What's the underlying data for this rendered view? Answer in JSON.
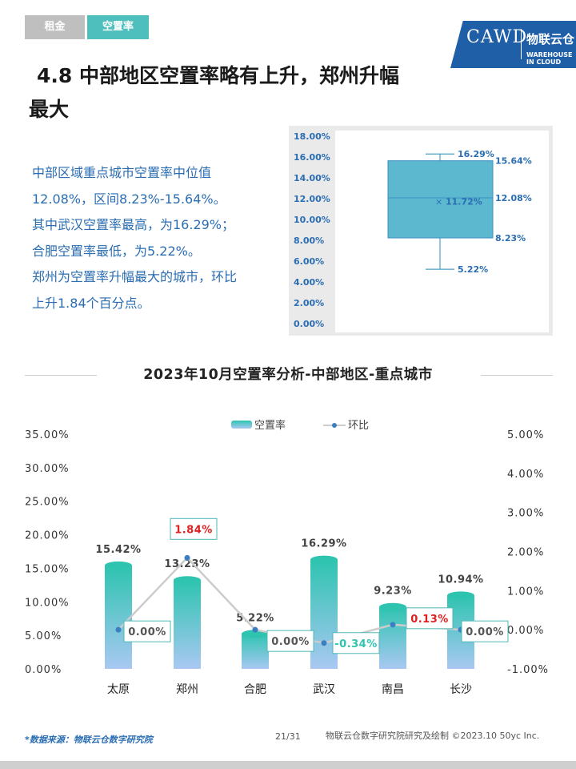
{
  "tabs": [
    {
      "label": "租金"
    },
    {
      "label": "空置率"
    }
  ],
  "logo": {
    "name": "CAWD",
    "cn": "物联云仓",
    "en": "WAREHOUSE IN CLOUD"
  },
  "title": {
    "line1": "4.8 中部地区空置率略有上升，郑州升幅",
    "line2": "最大"
  },
  "paragraph": [
    "中部区域重点城市空置率中位值",
    "12.08%，区间8.23%-15.64%。",
    "其中武汉空置率最高，为16.29%；",
    "合肥空置率最低，为5.22%。",
    "郑州为空置率升幅最大的城市，环比",
    "上升1.84个百分点。"
  ],
  "box_chart": {
    "type": "box",
    "y_ticks": [
      "18.00%",
      "16.00%",
      "14.00%",
      "12.00%",
      "10.00%",
      "8.00%",
      "6.00%",
      "4.00%",
      "2.00%",
      "0.00%"
    ],
    "ylim": [
      0,
      18
    ],
    "max": 16.29,
    "q3": 15.64,
    "median": 12.08,
    "mean": 11.72,
    "q1": 8.23,
    "min": 5.22,
    "labels": {
      "max": "16.29%",
      "q3": "15.64%",
      "median": "12.08%",
      "mean": "11.72%",
      "q1": "8.23%",
      "min": "5.22%"
    },
    "box_color": "#5cb8cf",
    "whisker_color": "#4d9fc7"
  },
  "chart_data": {
    "type": "bar",
    "title": "2023年10月空置率分析-中部地区-重点城市",
    "categories": [
      "太原",
      "郑州",
      "合肥",
      "武汉",
      "南昌",
      "长沙"
    ],
    "series": [
      {
        "name": "空置率",
        "values": [
          15.42,
          13.23,
          5.22,
          16.29,
          9.23,
          10.94
        ],
        "labels": [
          "15.42%",
          "13.23%",
          "5.22%",
          "16.29%",
          "9.23%",
          "10.94%"
        ]
      },
      {
        "name": "环比",
        "values": [
          0.0,
          1.84,
          0.0,
          -0.34,
          0.13,
          0.0
        ],
        "labels": [
          "0.00%",
          "1.84%",
          "0.00%",
          "-0.34%",
          "0.13%",
          "0.00%"
        ]
      }
    ],
    "left_axis": {
      "ticks": [
        "35.00%",
        "30.00%",
        "25.00%",
        "20.00%",
        "15.00%",
        "10.00%",
        "5.00%",
        "0.00%"
      ],
      "ylim": [
        0,
        35
      ]
    },
    "right_axis": {
      "ticks": [
        "5.00%",
        "4.00%",
        "3.00%",
        "2.00%",
        "1.00%",
        "0.00%",
        "-1.00%"
      ],
      "ylim": [
        -1,
        5
      ]
    },
    "legend_position": "top-center",
    "colors": {
      "bar_top": "#2ec4b0",
      "bar_bottom": "#a9c8f2",
      "line": "#cccccc",
      "marker": "#3a7fc1",
      "positive": "#e02020",
      "negative": "#2ec4b0",
      "zero": "#555555"
    }
  },
  "footer": {
    "source": "*数据来源：物联云仓数字研究院",
    "page": "21/31",
    "credit": "物联云仓数字研究院研究及绘制   ©2023.10 50yc Inc."
  }
}
